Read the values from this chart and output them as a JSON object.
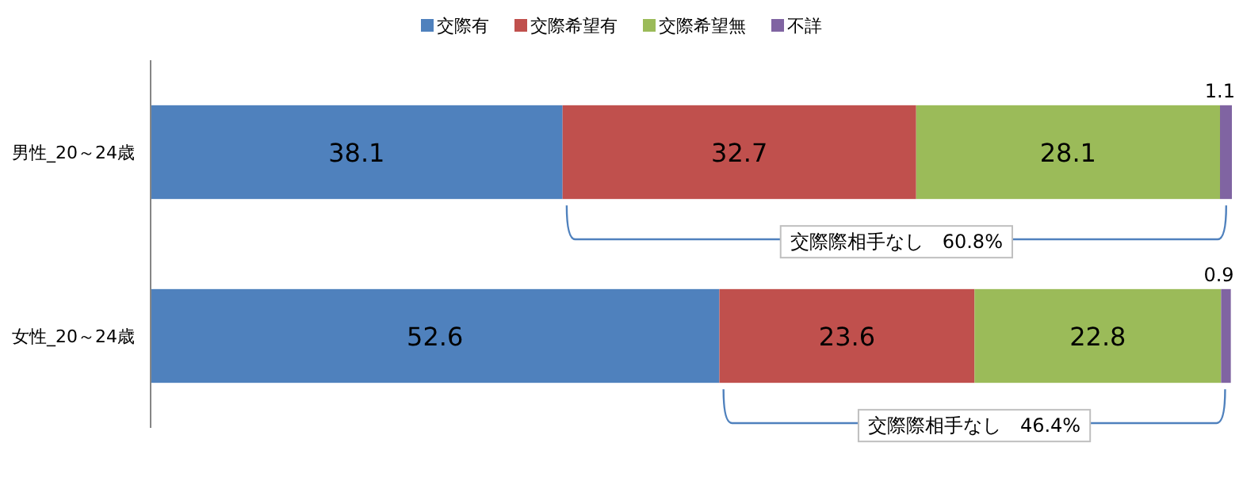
{
  "chart_data": {
    "type": "bar",
    "orientation": "horizontal",
    "stacked": true,
    "data_labels": true,
    "legend": "top",
    "categories": [
      "男性_20～24歳",
      "女性_20～24歳"
    ],
    "series": [
      {
        "name": "交際有",
        "color": "#4f81bd",
        "values": [
          38.1,
          52.6
        ]
      },
      {
        "name": "交際希望有",
        "color": "#c0504d",
        "values": [
          32.7,
          23.6
        ]
      },
      {
        "name": "交際希望無",
        "color": "#9bbb59",
        "values": [
          28.1,
          22.8
        ]
      },
      {
        "name": "不詳",
        "color": "#8064a2",
        "values": [
          1.1,
          0.9
        ]
      }
    ],
    "annotations": [
      "交際際相手なし　60.8%",
      "交際際相手なし　46.4%"
    ]
  }
}
